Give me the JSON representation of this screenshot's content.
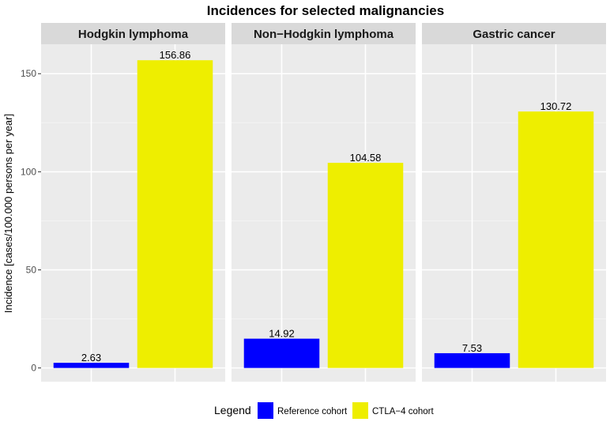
{
  "chart_data": {
    "type": "bar",
    "title": "Incidences for selected malignancies",
    "ylabel": "Incidence [cases/100.000 persons per year]",
    "xlabel": "",
    "ylim": [
      -7,
      165
    ],
    "yticks": [
      0,
      50,
      100,
      150
    ],
    "grid": true,
    "legend_position": "bottom",
    "legend_title": "Legend",
    "facets": [
      "Hodgkin lymphoma",
      "Non−Hodgkin lymphoma",
      "Gastric cancer"
    ],
    "series": [
      {
        "name": "Reference cohort",
        "color": "#0000ff",
        "values": [
          2.63,
          14.92,
          7.53
        ],
        "labels": [
          "2.63",
          "14.92",
          "7.53"
        ]
      },
      {
        "name": "CTLA−4 cohort",
        "color": "#eeee00",
        "values": [
          156.86,
          104.58,
          130.72
        ],
        "labels": [
          "156.86",
          "104.58",
          "130.72"
        ]
      }
    ]
  }
}
